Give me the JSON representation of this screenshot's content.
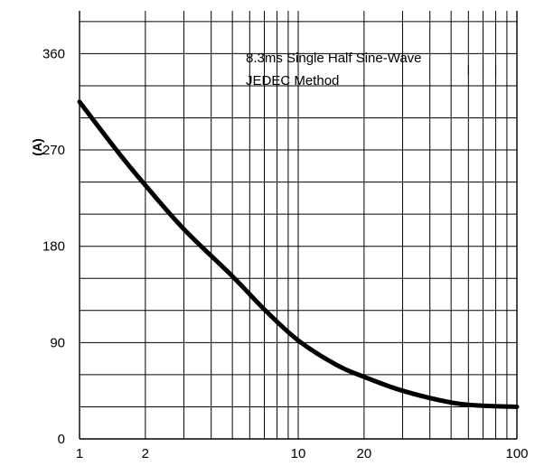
{
  "chart_data": {
    "type": "line",
    "title": "",
    "xlabel": "",
    "ylabel": "(A)",
    "x_scale": "log",
    "xlim": [
      1,
      100
    ],
    "ylim": [
      0,
      400
    ],
    "x_ticks": [
      1,
      2,
      10,
      20,
      100
    ],
    "y_ticks": [
      0,
      90,
      180,
      270,
      360
    ],
    "grid": true,
    "annotations": [
      "8.3ms Single Half Sine-Wave",
      "JEDEC Method"
    ],
    "series": [
      {
        "x": [
          1,
          1.5,
          2,
          3,
          5,
          7,
          10,
          15,
          20,
          30,
          50,
          70,
          100
        ],
        "y": [
          315,
          268,
          237,
          196,
          152,
          121,
          92,
          69,
          58,
          45,
          34,
          31,
          30
        ]
      }
    ]
  }
}
